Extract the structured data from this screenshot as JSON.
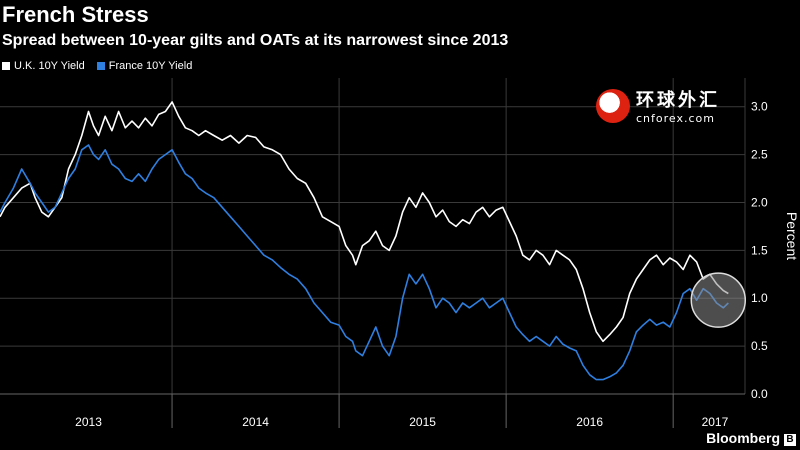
{
  "header": {
    "title": "French Stress",
    "subtitle": "Spread between 10-year gilts and OATs at its narrowest since 2013"
  },
  "legend": {
    "uk_label": "U.K. 10Y Yield",
    "france_label": "France 10Y Yield"
  },
  "colors": {
    "uk": "#ffffff",
    "france": "#2f7fe0",
    "grid": "#3a3a3a",
    "highlight": "#8c8c8c"
  },
  "brand": {
    "name": "Bloomberg",
    "mark": "B"
  },
  "watermark": {
    "cn": "环球外汇",
    "url": "cnforex.com"
  },
  "chart_data": {
    "type": "line",
    "title": "French Stress",
    "ylabel": "Percent",
    "ylim": [
      0,
      3.3
    ],
    "yticks": [
      0.0,
      0.5,
      1.0,
      1.5,
      2.0,
      2.5,
      3.0
    ],
    "ytick_labels": [
      "0.0",
      "0.5",
      "1.0",
      "1.5",
      "2.0",
      "2.5",
      "3.0"
    ],
    "xlim": [
      2012.97,
      2017.43
    ],
    "year_labels": [
      {
        "label": "2013",
        "x": 2013.5
      },
      {
        "label": "2014",
        "x": 2014.5
      },
      {
        "label": "2015",
        "x": 2015.5
      },
      {
        "label": "2016",
        "x": 2016.5
      },
      {
        "label": "2017",
        "x": 2017.25
      }
    ],
    "year_boundaries": [
      2014.0,
      2015.0,
      2016.0,
      2017.0
    ],
    "series": [
      {
        "name": "U.K. 10Y Yield",
        "color_key": "uk",
        "points": [
          [
            2012.97,
            1.85
          ],
          [
            2013.0,
            1.95
          ],
          [
            2013.05,
            2.05
          ],
          [
            2013.1,
            2.15
          ],
          [
            2013.15,
            2.2
          ],
          [
            2013.18,
            2.05
          ],
          [
            2013.22,
            1.9
          ],
          [
            2013.26,
            1.85
          ],
          [
            2013.3,
            1.95
          ],
          [
            2013.34,
            2.05
          ],
          [
            2013.38,
            2.35
          ],
          [
            2013.42,
            2.5
          ],
          [
            2013.46,
            2.7
          ],
          [
            2013.5,
            2.95
          ],
          [
            2013.53,
            2.8
          ],
          [
            2013.56,
            2.7
          ],
          [
            2013.6,
            2.9
          ],
          [
            2013.64,
            2.75
          ],
          [
            2013.68,
            2.95
          ],
          [
            2013.72,
            2.78
          ],
          [
            2013.76,
            2.85
          ],
          [
            2013.8,
            2.78
          ],
          [
            2013.84,
            2.88
          ],
          [
            2013.88,
            2.8
          ],
          [
            2013.92,
            2.92
          ],
          [
            2013.96,
            2.95
          ],
          [
            2014.0,
            3.05
          ],
          [
            2014.04,
            2.9
          ],
          [
            2014.08,
            2.78
          ],
          [
            2014.12,
            2.75
          ],
          [
            2014.16,
            2.7
          ],
          [
            2014.2,
            2.75
          ],
          [
            2014.25,
            2.7
          ],
          [
            2014.3,
            2.65
          ],
          [
            2014.35,
            2.7
          ],
          [
            2014.4,
            2.62
          ],
          [
            2014.45,
            2.7
          ],
          [
            2014.5,
            2.68
          ],
          [
            2014.55,
            2.58
          ],
          [
            2014.6,
            2.55
          ],
          [
            2014.65,
            2.5
          ],
          [
            2014.7,
            2.35
          ],
          [
            2014.75,
            2.25
          ],
          [
            2014.8,
            2.2
          ],
          [
            2014.85,
            2.05
          ],
          [
            2014.9,
            1.85
          ],
          [
            2014.95,
            1.8
          ],
          [
            2015.0,
            1.75
          ],
          [
            2015.04,
            1.55
          ],
          [
            2015.08,
            1.45
          ],
          [
            2015.1,
            1.35
          ],
          [
            2015.14,
            1.55
          ],
          [
            2015.18,
            1.6
          ],
          [
            2015.22,
            1.7
          ],
          [
            2015.26,
            1.55
          ],
          [
            2015.3,
            1.5
          ],
          [
            2015.34,
            1.65
          ],
          [
            2015.38,
            1.9
          ],
          [
            2015.42,
            2.05
          ],
          [
            2015.46,
            1.95
          ],
          [
            2015.5,
            2.1
          ],
          [
            2015.54,
            2.0
          ],
          [
            2015.58,
            1.85
          ],
          [
            2015.62,
            1.92
          ],
          [
            2015.66,
            1.8
          ],
          [
            2015.7,
            1.75
          ],
          [
            2015.74,
            1.82
          ],
          [
            2015.78,
            1.78
          ],
          [
            2015.82,
            1.9
          ],
          [
            2015.86,
            1.95
          ],
          [
            2015.9,
            1.85
          ],
          [
            2015.94,
            1.92
          ],
          [
            2015.98,
            1.95
          ],
          [
            2016.02,
            1.8
          ],
          [
            2016.06,
            1.65
          ],
          [
            2016.1,
            1.45
          ],
          [
            2016.14,
            1.4
          ],
          [
            2016.18,
            1.5
          ],
          [
            2016.22,
            1.45
          ],
          [
            2016.26,
            1.35
          ],
          [
            2016.3,
            1.5
          ],
          [
            2016.34,
            1.45
          ],
          [
            2016.38,
            1.4
          ],
          [
            2016.42,
            1.3
          ],
          [
            2016.46,
            1.1
          ],
          [
            2016.5,
            0.85
          ],
          [
            2016.54,
            0.65
          ],
          [
            2016.58,
            0.55
          ],
          [
            2016.62,
            0.62
          ],
          [
            2016.66,
            0.7
          ],
          [
            2016.7,
            0.8
          ],
          [
            2016.74,
            1.05
          ],
          [
            2016.78,
            1.2
          ],
          [
            2016.82,
            1.3
          ],
          [
            2016.86,
            1.4
          ],
          [
            2016.9,
            1.45
          ],
          [
            2016.94,
            1.35
          ],
          [
            2016.98,
            1.42
          ],
          [
            2017.02,
            1.38
          ],
          [
            2017.06,
            1.3
          ],
          [
            2017.1,
            1.45
          ],
          [
            2017.14,
            1.38
          ],
          [
            2017.18,
            1.2
          ],
          [
            2017.22,
            1.25
          ],
          [
            2017.26,
            1.15
          ],
          [
            2017.3,
            1.08
          ],
          [
            2017.33,
            1.05
          ]
        ]
      },
      {
        "name": "France 10Y Yield",
        "color_key": "france",
        "points": [
          [
            2012.97,
            1.9
          ],
          [
            2013.0,
            2.0
          ],
          [
            2013.05,
            2.15
          ],
          [
            2013.1,
            2.35
          ],
          [
            2013.15,
            2.2
          ],
          [
            2013.18,
            2.1
          ],
          [
            2013.22,
            2.0
          ],
          [
            2013.26,
            1.9
          ],
          [
            2013.3,
            1.95
          ],
          [
            2013.34,
            2.1
          ],
          [
            2013.38,
            2.25
          ],
          [
            2013.42,
            2.35
          ],
          [
            2013.46,
            2.55
          ],
          [
            2013.5,
            2.6
          ],
          [
            2013.53,
            2.5
          ],
          [
            2013.56,
            2.45
          ],
          [
            2013.6,
            2.55
          ],
          [
            2013.64,
            2.4
          ],
          [
            2013.68,
            2.35
          ],
          [
            2013.72,
            2.25
          ],
          [
            2013.76,
            2.22
          ],
          [
            2013.8,
            2.3
          ],
          [
            2013.84,
            2.22
          ],
          [
            2013.88,
            2.35
          ],
          [
            2013.92,
            2.45
          ],
          [
            2013.96,
            2.5
          ],
          [
            2014.0,
            2.55
          ],
          [
            2014.04,
            2.42
          ],
          [
            2014.08,
            2.3
          ],
          [
            2014.12,
            2.25
          ],
          [
            2014.16,
            2.15
          ],
          [
            2014.2,
            2.1
          ],
          [
            2014.25,
            2.05
          ],
          [
            2014.3,
            1.95
          ],
          [
            2014.35,
            1.85
          ],
          [
            2014.4,
            1.75
          ],
          [
            2014.45,
            1.65
          ],
          [
            2014.5,
            1.55
          ],
          [
            2014.55,
            1.45
          ],
          [
            2014.6,
            1.4
          ],
          [
            2014.65,
            1.32
          ],
          [
            2014.7,
            1.25
          ],
          [
            2014.75,
            1.2
          ],
          [
            2014.8,
            1.1
          ],
          [
            2014.85,
            0.95
          ],
          [
            2014.9,
            0.85
          ],
          [
            2014.95,
            0.75
          ],
          [
            2015.0,
            0.72
          ],
          [
            2015.04,
            0.6
          ],
          [
            2015.08,
            0.55
          ],
          [
            2015.1,
            0.45
          ],
          [
            2015.14,
            0.4
          ],
          [
            2015.18,
            0.55
          ],
          [
            2015.22,
            0.7
          ],
          [
            2015.26,
            0.5
          ],
          [
            2015.3,
            0.4
          ],
          [
            2015.34,
            0.6
          ],
          [
            2015.38,
            1.0
          ],
          [
            2015.42,
            1.25
          ],
          [
            2015.46,
            1.15
          ],
          [
            2015.5,
            1.25
          ],
          [
            2015.54,
            1.1
          ],
          [
            2015.58,
            0.9
          ],
          [
            2015.62,
            1.0
          ],
          [
            2015.66,
            0.95
          ],
          [
            2015.7,
            0.85
          ],
          [
            2015.74,
            0.95
          ],
          [
            2015.78,
            0.9
          ],
          [
            2015.82,
            0.95
          ],
          [
            2015.86,
            1.0
          ],
          [
            2015.9,
            0.9
          ],
          [
            2015.94,
            0.95
          ],
          [
            2015.98,
            1.0
          ],
          [
            2016.02,
            0.85
          ],
          [
            2016.06,
            0.7
          ],
          [
            2016.1,
            0.62
          ],
          [
            2016.14,
            0.55
          ],
          [
            2016.18,
            0.6
          ],
          [
            2016.22,
            0.55
          ],
          [
            2016.26,
            0.5
          ],
          [
            2016.3,
            0.6
          ],
          [
            2016.34,
            0.52
          ],
          [
            2016.38,
            0.48
          ],
          [
            2016.42,
            0.45
          ],
          [
            2016.46,
            0.3
          ],
          [
            2016.5,
            0.2
          ],
          [
            2016.54,
            0.15
          ],
          [
            2016.58,
            0.15
          ],
          [
            2016.62,
            0.18
          ],
          [
            2016.66,
            0.22
          ],
          [
            2016.7,
            0.3
          ],
          [
            2016.74,
            0.45
          ],
          [
            2016.78,
            0.65
          ],
          [
            2016.82,
            0.72
          ],
          [
            2016.86,
            0.78
          ],
          [
            2016.9,
            0.72
          ],
          [
            2016.94,
            0.75
          ],
          [
            2016.98,
            0.7
          ],
          [
            2017.02,
            0.85
          ],
          [
            2017.06,
            1.05
          ],
          [
            2017.1,
            1.1
          ],
          [
            2017.14,
            0.98
          ],
          [
            2017.18,
            1.1
          ],
          [
            2017.22,
            1.05
          ],
          [
            2017.26,
            0.95
          ],
          [
            2017.3,
            0.9
          ],
          [
            2017.33,
            0.95
          ]
        ]
      }
    ],
    "annotations": [
      {
        "type": "circle",
        "x": 2017.27,
        "y": 0.98,
        "description": "highlight of narrowing spread"
      }
    ]
  }
}
